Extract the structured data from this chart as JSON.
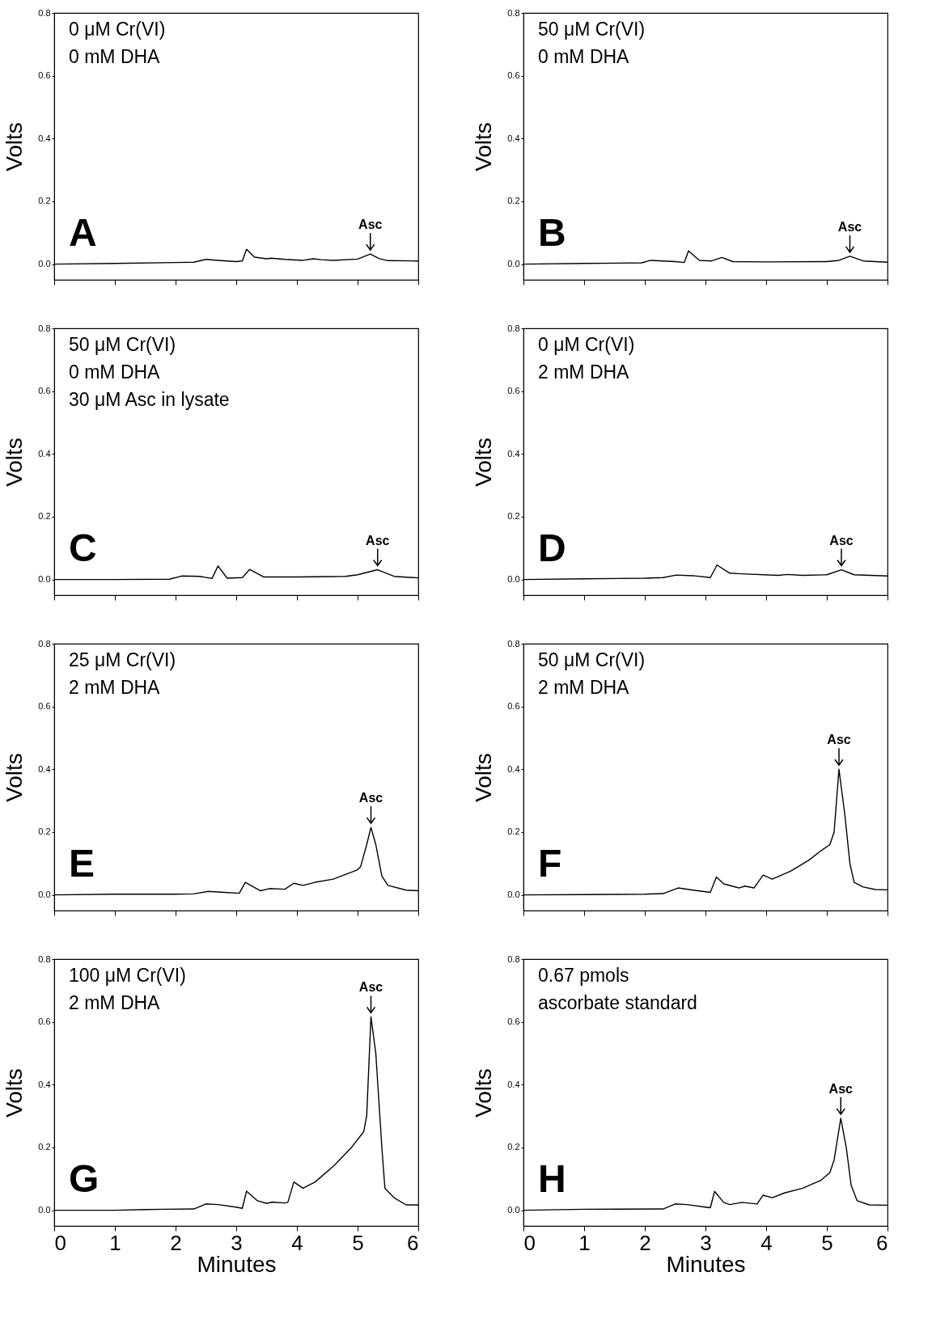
{
  "chart_data": [
    {
      "type": "line",
      "ylabel": "Volts",
      "color": "#000000",
      "xlim": [
        0,
        6
      ],
      "ylim": [
        -0.05,
        0.8
      ],
      "xticks": [
        0,
        1,
        2,
        3,
        4,
        5,
        6
      ],
      "yticks": [
        {
          "value": 0,
          "label": "0.0"
        },
        {
          "value": 0.2,
          "label": "0.2"
        },
        {
          "value": 0.4,
          "label": "0.4"
        },
        {
          "value": 0.6,
          "label": "0.6"
        },
        {
          "value": 0.8,
          "label": "0.8"
        }
      ],
      "tick_labels": "y",
      "x": [
        0,
        1,
        2,
        2.3,
        2.5,
        2.7,
        3.0,
        3.1,
        3.17,
        3.3,
        3.5,
        3.58,
        3.8,
        4.1,
        4.27,
        4.4,
        4.6,
        5.0,
        5.21,
        5.35,
        5.5,
        6
      ],
      "values": [
        0,
        0.002,
        0.005,
        0.006,
        0.015,
        0.012,
        0.008,
        0.01,
        0.047,
        0.022,
        0.017,
        0.019,
        0.015,
        0.012,
        0.017,
        0.014,
        0.012,
        0.016,
        0.032,
        0.018,
        0.011,
        0.01
      ],
      "annotations": [
        {
          "text": "Asc",
          "x": 5.21,
          "y": 0.032
        },
        "A",
        "0 μM Cr(VI)",
        "0 mM DHA"
      ]
    },
    {
      "type": "line",
      "ylabel": "Volts",
      "color": "#000000",
      "xlim": [
        0,
        6
      ],
      "ylim": [
        -0.05,
        0.8
      ],
      "xticks": [
        0,
        1,
        2,
        3,
        4,
        5,
        6
      ],
      "yticks": [
        {
          "value": 0,
          "label": "0.0"
        },
        {
          "value": 0.2,
          "label": "0.2"
        },
        {
          "value": 0.4,
          "label": "0.4"
        },
        {
          "value": 0.6,
          "label": "0.6"
        },
        {
          "value": 0.8,
          "label": "0.8"
        }
      ],
      "tick_labels": "y",
      "x": [
        0,
        1,
        1.95,
        2.1,
        2.5,
        2.65,
        2.72,
        2.9,
        3.1,
        3.27,
        3.45,
        4.0,
        5.0,
        5.2,
        5.38,
        5.6,
        6
      ],
      "values": [
        0,
        0.002,
        0.004,
        0.012,
        0.008,
        0.005,
        0.042,
        0.012,
        0.01,
        0.021,
        0.008,
        0.007,
        0.008,
        0.012,
        0.025,
        0.01,
        0.006
      ],
      "annotations": [
        {
          "text": "Asc",
          "x": 5.38,
          "y": 0.025
        },
        "B",
        "50 μM Cr(VI)",
        "0 mM DHA"
      ]
    },
    {
      "type": "line",
      "ylabel": "Volts",
      "color": "#000000",
      "xlim": [
        0,
        6
      ],
      "ylim": [
        -0.05,
        0.8
      ],
      "xticks": [
        0,
        1,
        2,
        3,
        4,
        5,
        6
      ],
      "yticks": [
        {
          "value": 0,
          "label": "0.0"
        },
        {
          "value": 0.2,
          "label": "0.2"
        },
        {
          "value": 0.4,
          "label": "0.4"
        },
        {
          "value": 0.6,
          "label": "0.6"
        },
        {
          "value": 0.8,
          "label": "0.8"
        }
      ],
      "tick_labels": "y",
      "x": [
        0,
        1,
        1.9,
        2.1,
        2.4,
        2.6,
        2.7,
        2.85,
        3.1,
        3.22,
        3.45,
        4.0,
        4.8,
        5.0,
        5.33,
        5.6,
        6
      ],
      "values": [
        0,
        0,
        0.001,
        0.011,
        0.01,
        0.003,
        0.043,
        0.004,
        0.006,
        0.032,
        0.008,
        0.008,
        0.01,
        0.015,
        0.031,
        0.01,
        0.005
      ],
      "annotations": [
        {
          "text": "Asc",
          "x": 5.33,
          "y": 0.031
        },
        "C",
        "50 μM Cr(VI)",
        "0 mM DHA",
        "30 μM Asc in lysate"
      ]
    },
    {
      "type": "line",
      "ylabel": "Volts",
      "color": "#000000",
      "xlim": [
        0,
        6
      ],
      "ylim": [
        -0.05,
        0.8
      ],
      "xticks": [
        0,
        1,
        2,
        3,
        4,
        5,
        6
      ],
      "yticks": [
        {
          "value": 0,
          "label": "0.0"
        },
        {
          "value": 0.2,
          "label": "0.2"
        },
        {
          "value": 0.4,
          "label": "0.4"
        },
        {
          "value": 0.6,
          "label": "0.6"
        },
        {
          "value": 0.8,
          "label": "0.8"
        }
      ],
      "tick_labels": "y",
      "x": [
        0,
        1,
        2,
        2.3,
        2.52,
        2.8,
        3.08,
        3.19,
        3.4,
        3.6,
        4.2,
        4.35,
        4.6,
        5.0,
        5.24,
        5.45,
        6
      ],
      "values": [
        0,
        0.002,
        0.004,
        0.006,
        0.014,
        0.012,
        0.006,
        0.046,
        0.02,
        0.018,
        0.013,
        0.016,
        0.013,
        0.015,
        0.031,
        0.015,
        0.011
      ],
      "annotations": [
        {
          "text": "Asc",
          "x": 5.24,
          "y": 0.031
        },
        "D",
        "0 μM Cr(VI)",
        "2 mM DHA"
      ]
    },
    {
      "type": "line",
      "ylabel": "Volts",
      "color": "#000000",
      "xlim": [
        0,
        6
      ],
      "ylim": [
        -0.05,
        0.8
      ],
      "xticks": [
        0,
        1,
        2,
        3,
        4,
        5,
        6
      ],
      "yticks": [
        {
          "value": 0,
          "label": "0.0"
        },
        {
          "value": 0.2,
          "label": "0.2"
        },
        {
          "value": 0.4,
          "label": "0.4"
        },
        {
          "value": 0.6,
          "label": "0.6"
        },
        {
          "value": 0.8,
          "label": "0.8"
        }
      ],
      "tick_labels": "y",
      "x": [
        0,
        1,
        2,
        2.3,
        2.53,
        2.8,
        3.05,
        3.15,
        3.4,
        3.55,
        3.8,
        3.95,
        4.1,
        4.3,
        4.6,
        4.8,
        5.0,
        5.05,
        5.15,
        5.22,
        5.3,
        5.4,
        5.5,
        5.8,
        6
      ],
      "values": [
        0,
        0.002,
        0.002,
        0.003,
        0.011,
        0.008,
        0.005,
        0.04,
        0.013,
        0.02,
        0.018,
        0.037,
        0.03,
        0.04,
        0.05,
        0.065,
        0.08,
        0.09,
        0.16,
        0.215,
        0.16,
        0.06,
        0.03,
        0.015,
        0.013
      ],
      "annotations": [
        {
          "text": "Asc",
          "x": 5.22,
          "y": 0.215
        },
        "E",
        "25 μM Cr(VI)",
        "2 mM DHA"
      ]
    },
    {
      "type": "line",
      "ylabel": "Volts",
      "color": "#000000",
      "xlim": [
        0,
        6
      ],
      "ylim": [
        -0.05,
        0.8
      ],
      "xticks": [
        0,
        1,
        2,
        3,
        4,
        5,
        6
      ],
      "yticks": [
        {
          "value": 0,
          "label": "0.0"
        },
        {
          "value": 0.2,
          "label": "0.2"
        },
        {
          "value": 0.4,
          "label": "0.4"
        },
        {
          "value": 0.6,
          "label": "0.6"
        },
        {
          "value": 0.8,
          "label": "0.8"
        }
      ],
      "tick_labels": "y",
      "x": [
        0,
        1,
        2,
        2.3,
        2.55,
        2.8,
        3.08,
        3.18,
        3.3,
        3.55,
        3.65,
        3.8,
        3.95,
        4.1,
        4.4,
        4.7,
        4.9,
        5.05,
        5.12,
        5.2,
        5.3,
        5.38,
        5.45,
        5.6,
        5.8,
        6
      ],
      "values": [
        0,
        0.001,
        0.002,
        0.004,
        0.022,
        0.015,
        0.008,
        0.057,
        0.035,
        0.022,
        0.028,
        0.022,
        0.063,
        0.05,
        0.075,
        0.11,
        0.14,
        0.16,
        0.2,
        0.4,
        0.25,
        0.1,
        0.04,
        0.025,
        0.017,
        0.016
      ],
      "annotations": [
        {
          "text": "Asc",
          "x": 5.2,
          "y": 0.4
        },
        "F",
        "50 μM Cr(VI)",
        "2 mM DHA"
      ]
    },
    {
      "type": "line",
      "ylabel": "Volts",
      "xlabel": "Minutes",
      "color": "#000000",
      "xlim": [
        0,
        6
      ],
      "ylim": [
        -0.05,
        0.8
      ],
      "xticks": [
        0,
        1,
        2,
        3,
        4,
        5,
        6
      ],
      "yticks": [
        {
          "value": 0,
          "label": "0.0"
        },
        {
          "value": 0.2,
          "label": "0.2"
        },
        {
          "value": 0.4,
          "label": "0.4"
        },
        {
          "value": 0.6,
          "label": "0.6"
        },
        {
          "value": 0.8,
          "label": "0.8"
        }
      ],
      "x": [
        0,
        1,
        1.5,
        1.8,
        2.3,
        2.5,
        2.7,
        3.0,
        3.1,
        3.17,
        3.35,
        3.5,
        3.6,
        3.8,
        3.85,
        3.95,
        4.1,
        4.3,
        4.6,
        4.9,
        5.1,
        5.15,
        5.22,
        5.3,
        5.4,
        5.45,
        5.6,
        5.8,
        6
      ],
      "values": [
        0,
        0,
        0.002,
        0.003,
        0.004,
        0.02,
        0.018,
        0.01,
        0.006,
        0.061,
        0.03,
        0.022,
        0.026,
        0.023,
        0.025,
        0.09,
        0.07,
        0.09,
        0.14,
        0.2,
        0.25,
        0.3,
        0.616,
        0.5,
        0.2,
        0.07,
        0.04,
        0.017,
        0.017
      ],
      "annotations": [
        {
          "text": "Asc",
          "x": 5.22,
          "y": 0.616
        },
        "G",
        "100 μM Cr(VI)",
        "2 mM DHA"
      ]
    },
    {
      "type": "line",
      "ylabel": "Volts",
      "xlabel": "Minutes",
      "color": "#000000",
      "xlim": [
        0,
        6
      ],
      "ylim": [
        -0.05,
        0.8
      ],
      "xticks": [
        0,
        1,
        2,
        3,
        4,
        5,
        6
      ],
      "yticks": [
        {
          "value": 0,
          "label": "0.0"
        },
        {
          "value": 0.2,
          "label": "0.2"
        },
        {
          "value": 0.4,
          "label": "0.4"
        },
        {
          "value": 0.6,
          "label": "0.6"
        },
        {
          "value": 0.8,
          "label": "0.8"
        }
      ],
      "x": [
        0,
        1,
        2.3,
        2.5,
        2.7,
        3.0,
        3.08,
        3.15,
        3.3,
        3.4,
        3.6,
        3.85,
        3.95,
        4.1,
        4.3,
        4.6,
        4.9,
        5.05,
        5.12,
        5.23,
        5.32,
        5.4,
        5.5,
        5.7,
        6
      ],
      "values": [
        0,
        0.003,
        0.004,
        0.02,
        0.018,
        0.01,
        0.008,
        0.06,
        0.025,
        0.018,
        0.025,
        0.02,
        0.048,
        0.04,
        0.055,
        0.07,
        0.095,
        0.12,
        0.16,
        0.293,
        0.2,
        0.08,
        0.03,
        0.017,
        0.016
      ],
      "annotations": [
        {
          "text": "Asc",
          "x": 5.23,
          "y": 0.293
        },
        "H",
        "0.67 pmols",
        "ascorbate standard"
      ]
    }
  ]
}
